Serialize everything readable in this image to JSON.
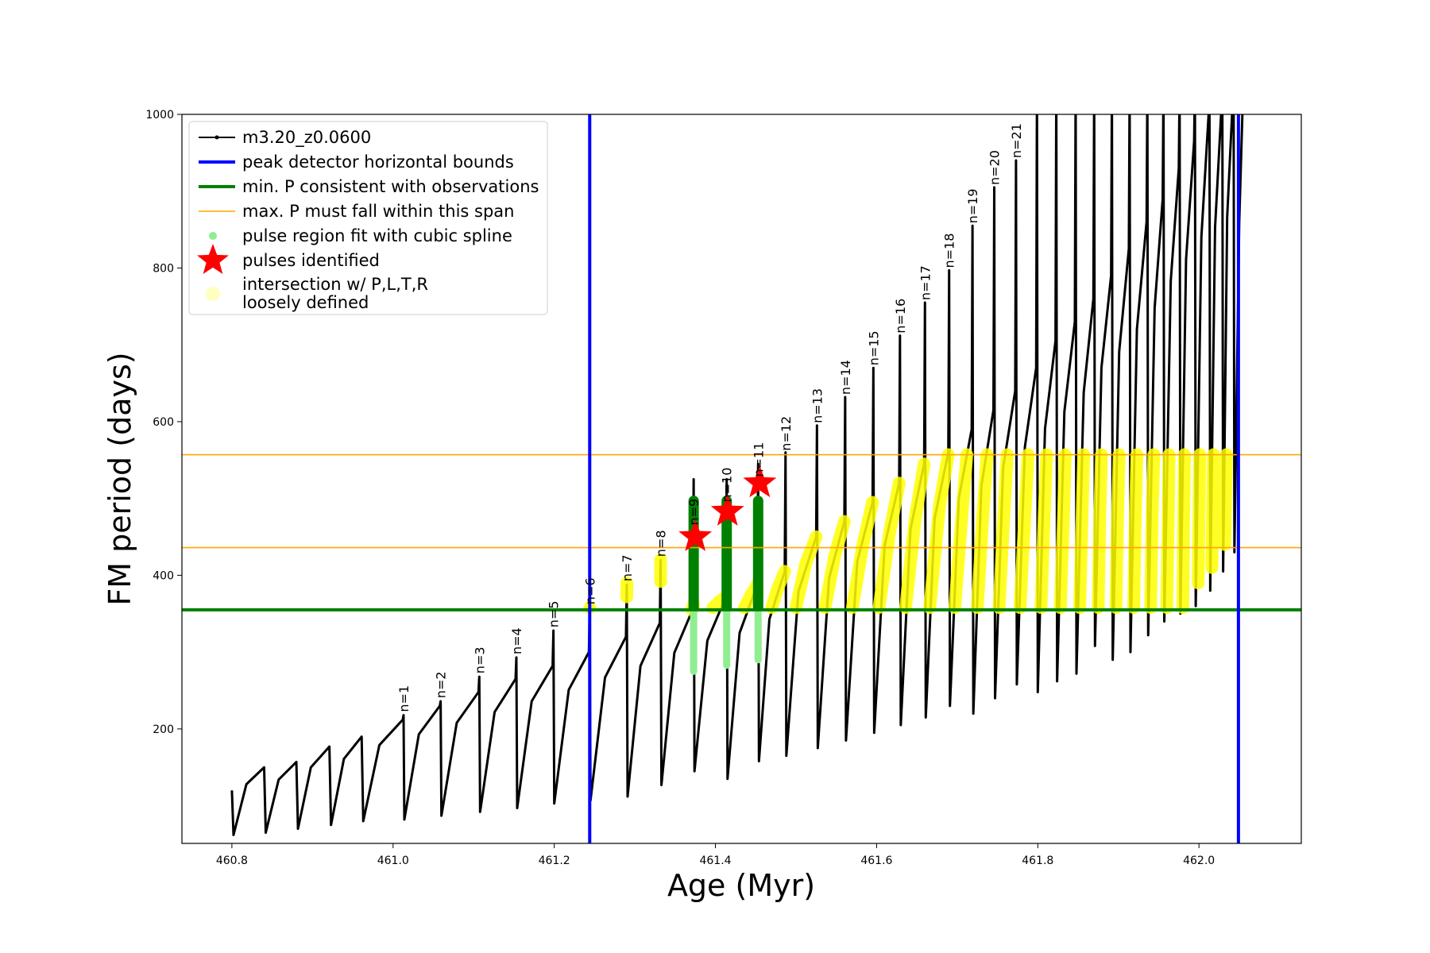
{
  "chart_data": {
    "type": "line",
    "xlabel": "Age (Myr)",
    "ylabel": "FM period (days)",
    "xlim": [
      460.738,
      462.127
    ],
    "ylim": [
      51,
      1000
    ],
    "xticks": [
      460.8,
      {
        "value": 461,
        "label": "461.0"
      },
      461.2,
      461.4,
      461.6,
      461.8,
      {
        "value": 462,
        "label": "462.0"
      }
    ],
    "yticks": [
      200,
      400,
      600,
      800,
      1000
    ],
    "legend": "upper left",
    "series": [
      {
        "name": "m3.20_z0.0600",
        "color": "#000000",
        "marker": ".",
        "x": [
          460.8,
          460.802,
          460.818,
          460.84,
          460.842,
          460.858,
          460.88,
          460.882,
          460.898,
          460.921,
          460.923,
          460.939,
          460.961,
          460.963,
          460.983,
          461.012,
          461.013,
          461.014,
          461.032,
          461.058,
          461.059,
          461.06,
          461.079,
          461.106,
          461.107,
          461.108,
          461.126,
          461.152,
          461.153,
          461.154,
          461.172,
          461.198,
          461.199,
          461.2,
          461.218,
          461.243,
          461.244,
          461.245,
          461.263,
          461.289,
          461.29,
          461.291,
          461.307,
          461.331,
          461.332,
          461.333,
          461.349,
          461.372,
          461.373,
          461.374,
          461.39,
          461.413,
          461.414,
          461.415,
          461.43,
          461.452,
          461.453,
          461.454,
          461.467,
          461.486,
          461.487,
          461.488,
          461.503,
          461.525,
          461.526,
          461.527,
          461.541,
          461.56,
          461.561,
          461.562,
          461.576,
          461.595,
          461.596,
          461.597,
          461.61,
          461.628,
          461.629,
          461.63,
          461.642,
          461.659,
          461.66,
          461.661,
          461.672,
          461.689,
          461.69,
          461.691,
          461.702,
          461.718,
          461.719,
          461.72,
          461.73,
          461.745,
          461.746,
          461.747,
          461.757,
          461.772,
          461.773,
          461.774,
          461.784,
          461.798,
          461.799,
          461.8,
          461.809,
          461.822,
          461.823,
          461.824,
          461.833,
          461.846,
          461.847,
          461.848,
          461.857,
          461.869,
          461.87,
          461.871,
          461.879,
          461.891,
          461.892,
          461.893,
          461.901,
          461.913,
          461.914,
          461.915,
          461.923,
          461.935,
          461.936,
          461.937,
          461.945,
          461.955,
          461.956,
          461.957,
          461.965,
          461.975,
          461.976,
          461.977,
          461.984,
          461.994,
          461.995,
          461.996,
          462.003,
          462.012,
          462.013,
          462.014,
          462.02,
          462.028,
          462.029,
          462.03,
          462.035,
          462.042,
          462.043,
          462.044,
          462.05,
          462.055
        ],
        "values": [
          120,
          62,
          128,
          150,
          65,
          134,
          157,
          70,
          150,
          177,
          75,
          161,
          190,
          80,
          179,
          212,
          218,
          82,
          193,
          230,
          236,
          87,
          208,
          248,
          268,
          92,
          222,
          265,
          293,
          97,
          236,
          282,
          328,
          103,
          251,
          300,
          358,
          107,
          267,
          320,
          388,
          112,
          282,
          338,
          420,
          127,
          299,
          356,
          525,
          145,
          315,
          372,
          525,
          135,
          325,
          388,
          545,
          158,
          343,
          405,
          560,
          165,
          379,
          450,
          595,
          175,
          396,
          470,
          632,
          185,
          418,
          495,
          670,
          195,
          439,
          520,
          712,
          205,
          460,
          545,
          755,
          215,
          474,
          560,
          797,
          230,
          500,
          590,
          855,
          220,
          516,
          615,
          905,
          240,
          540,
          640,
          940,
          258,
          567,
          670,
          1040,
          248,
          591,
          705,
          1040,
          262,
          613,
          730,
          1040,
          272,
          638,
          760,
          1040,
          308,
          670,
          790,
          1040,
          290,
          691,
          825,
          1040,
          300,
          720,
          860,
          1040,
          322,
          748,
          890,
          1040,
          340,
          783,
          930,
          1040,
          350,
          811,
          965,
          1040,
          360,
          840,
          1000,
          1040,
          380,
          853,
          1010,
          1040,
          405,
          866,
          1020,
          1040,
          430,
          860,
          1040
        ]
      },
      {
        "name": "pulse region fit with cubic spline",
        "color": "#90ee90",
        "marker": "o",
        "x": [
          461.373,
          461.373,
          null,
          461.414,
          461.414,
          null,
          461.453,
          461.453
        ],
        "values": [
          275,
          497,
          null,
          283,
          497,
          null,
          290,
          497
        ]
      },
      {
        "name": "pulses identified",
        "color": "#ff0000",
        "marker": "*",
        "x": [
          461.375,
          461.415,
          461.455
        ],
        "values": [
          450,
          483,
          520
        ]
      },
      {
        "name": "intersection w/ P,L,T,R\nloosely defined",
        "color": "#ffff00",
        "marker": "o",
        "x": [
          461.244,
          null,
          461.29,
          461.29,
          null,
          461.332,
          461.332,
          null,
          461.371,
          461.373,
          null,
          461.397,
          461.405,
          461.413,
          null,
          461.436,
          461.445,
          461.452,
          null,
          461.47,
          461.478,
          461.486,
          null,
          461.5,
          461.512,
          461.525,
          null,
          461.536,
          461.548,
          461.56,
          null,
          461.57,
          461.583,
          461.595,
          null,
          461.603,
          461.616,
          461.628,
          null,
          461.636,
          461.648,
          461.659,
          null,
          461.666,
          461.678,
          461.689,
          null,
          461.697,
          461.706,
          461.712,
          null,
          461.725,
          461.732,
          461.737,
          null,
          461.752,
          461.758,
          461.762,
          null,
          461.778,
          461.784,
          461.788,
          null,
          461.804,
          461.808,
          461.811,
          null,
          461.828,
          461.832,
          461.834,
          null,
          461.852,
          461.855,
          461.857,
          null,
          461.875,
          461.877,
          461.879,
          null,
          461.897,
          461.899,
          461.901,
          null,
          461.919,
          461.921,
          461.923,
          null,
          461.94,
          461.942,
          461.944,
          null,
          461.96,
          461.962,
          461.963,
          null,
          461.98,
          461.981,
          461.982,
          null,
          461.999,
          462.0,
          462.001,
          null,
          462.016,
          462.017,
          462.018,
          null,
          462.032,
          462.033,
          462.034
        ],
        "values": [
          358,
          null,
          372,
          390,
          null,
          392,
          420,
          null,
          355,
          362,
          null,
          358,
          366,
          372,
          null,
          358,
          376,
          388,
          null,
          358,
          385,
          405,
          null,
          358,
          415,
          450,
          null,
          358,
          425,
          470,
          null,
          358,
          440,
          495,
          null,
          358,
          455,
          520,
          null,
          358,
          475,
          545,
          null,
          358,
          490,
          557,
          null,
          358,
          480,
          557,
          null,
          358,
          480,
          557,
          null,
          358,
          480,
          557,
          null,
          358,
          480,
          557,
          null,
          358,
          480,
          557,
          null,
          358,
          480,
          557,
          null,
          358,
          480,
          557,
          null,
          358,
          480,
          557,
          null,
          358,
          480,
          557,
          null,
          358,
          480,
          557,
          null,
          358,
          480,
          557,
          null,
          358,
          480,
          557,
          null,
          358,
          480,
          557,
          null,
          390,
          480,
          557,
          null,
          410,
          480,
          557,
          null,
          440,
          500,
          557
        ]
      }
    ],
    "vlines": {
      "name": "peak detector horizontal bounds",
      "color": "#0000ff",
      "values": [
        461.244,
        462.049
      ]
    },
    "hlines": [
      {
        "name": "min. P consistent with observations",
        "color": "#008000",
        "values": [
          355
        ]
      },
      {
        "name": "max. P must fall within this span",
        "color": "#ffa500",
        "values": [
          436,
          557
        ]
      }
    ],
    "annotations": [
      {
        "text": "n=1",
        "x": 461.013,
        "y": 222
      },
      {
        "text": "n=2",
        "x": 461.059,
        "y": 240
      },
      {
        "text": "n=3",
        "x": 461.107,
        "y": 272
      },
      {
        "text": "n=4",
        "x": 461.153,
        "y": 297
      },
      {
        "text": "n=5",
        "x": 461.199,
        "y": 332
      },
      {
        "text": "n=6",
        "x": 461.244,
        "y": 362
      },
      {
        "text": "n=7",
        "x": 461.29,
        "y": 392
      },
      {
        "text": "n=8",
        "x": 461.332,
        "y": 424
      },
      {
        "text": "n=9",
        "x": 461.373,
        "y": 465
      },
      {
        "text": "n=10",
        "x": 461.414,
        "y": 495
      },
      {
        "text": "n=11",
        "x": 461.453,
        "y": 528
      },
      {
        "text": "n=12",
        "x": 461.487,
        "y": 562
      },
      {
        "text": "n=13",
        "x": 461.526,
        "y": 598
      },
      {
        "text": "n=14",
        "x": 461.561,
        "y": 635
      },
      {
        "text": "n=15",
        "x": 461.596,
        "y": 673
      },
      {
        "text": "n=16",
        "x": 461.629,
        "y": 715
      },
      {
        "text": "n=17",
        "x": 461.66,
        "y": 758
      },
      {
        "text": "n=18",
        "x": 461.69,
        "y": 800
      },
      {
        "text": "n=19",
        "x": 461.719,
        "y": 858
      },
      {
        "text": "n=20",
        "x": 461.746,
        "y": 908
      },
      {
        "text": "n=21",
        "x": 461.773,
        "y": 943
      }
    ]
  }
}
